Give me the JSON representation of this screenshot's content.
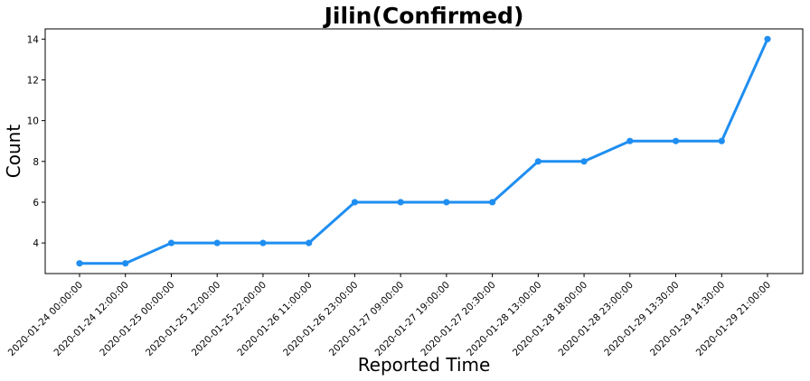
{
  "chart_data": {
    "type": "line",
    "title": "Jilin(Confirmed)",
    "xlabel": "Reported Time",
    "ylabel": "Count",
    "categories": [
      "2020-01-24 00:00:00",
      "2020-01-24 12:00:00",
      "2020-01-25 00:00:00",
      "2020-01-25 12:00:00",
      "2020-01-25 22:00:00",
      "2020-01-26 11:00:00",
      "2020-01-26 23:00:00",
      "2020-01-27 09:00:00",
      "2020-01-27 19:00:00",
      "2020-01-27 20:30:00",
      "2020-01-28 13:00:00",
      "2020-01-28 18:00:00",
      "2020-01-28 23:00:00",
      "2020-01-29 13:30:00",
      "2020-01-29 14:30:00",
      "2020-01-29 21:00:00"
    ],
    "values": [
      3,
      3,
      4,
      4,
      4,
      4,
      6,
      6,
      6,
      6,
      8,
      8,
      9,
      9,
      9,
      14
    ],
    "ylim": [
      2.5,
      14.5
    ],
    "yticks": [
      4,
      6,
      8,
      10,
      12,
      14
    ],
    "grid": false,
    "line_color": "#1f8ef1"
  }
}
